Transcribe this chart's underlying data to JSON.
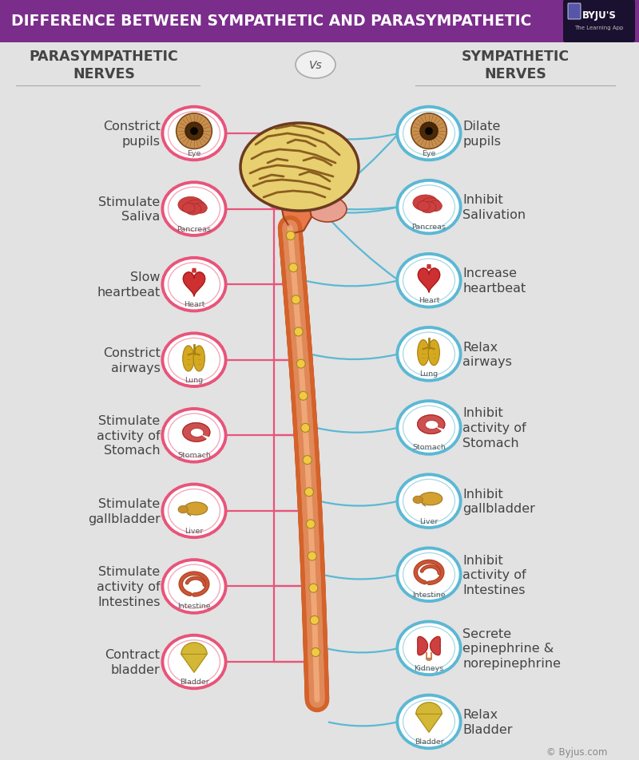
{
  "title": "DIFFERENCE BETWEEN SYMPATHETIC AND PARASYMPATHETIC",
  "title_bg_color": "#7B2D8B",
  "title_text_color": "#FFFFFF",
  "bg_color": "#E2E2E2",
  "left_header": "PARASYMPATHETIC\nNERVES",
  "right_header": "SYMPATHETIC\nNERVES",
  "vs_text": "Vs",
  "header_color": "#444444",
  "left_items": [
    {
      "label": "Constrict\npupils",
      "organ": "Eye",
      "color": "#E8547A"
    },
    {
      "label": "Stimulate\nSaliva",
      "organ": "Pancreas",
      "color": "#E8547A"
    },
    {
      "label": "Slow\nheartbeat",
      "organ": "Heart",
      "color": "#E8547A"
    },
    {
      "label": "Constrict\nairways",
      "organ": "Lung",
      "color": "#E8547A"
    },
    {
      "label": "Stimulate\nactivity of\nStomach",
      "organ": "Stomach",
      "color": "#E8547A"
    },
    {
      "label": "Stimulate\ngallbladder",
      "organ": "Liver",
      "color": "#E8547A"
    },
    {
      "label": "Stimulate\nactivity of\nIntestines",
      "organ": "Intestine",
      "color": "#E8547A"
    },
    {
      "label": "Contract\nbladder",
      "organ": "Bladder",
      "color": "#E8547A"
    }
  ],
  "right_items": [
    {
      "label": "Dilate\npupils",
      "organ": "Eye",
      "color": "#5BB8D4"
    },
    {
      "label": "Inhibit\nSalivation",
      "organ": "Pancreas",
      "color": "#5BB8D4"
    },
    {
      "label": "Increase\nheartbeat",
      "organ": "Heart",
      "color": "#5BB8D4"
    },
    {
      "label": "Relax\nairways",
      "organ": "Lung",
      "color": "#5BB8D4"
    },
    {
      "label": "Inhibit\nactivity of\nStomach",
      "organ": "Stomach",
      "color": "#5BB8D4"
    },
    {
      "label": "Inhibit\ngallbladder",
      "organ": "Liver",
      "color": "#5BB8D4"
    },
    {
      "label": "Inhibit\nactivity of\nIntestines",
      "organ": "Intestine",
      "color": "#5BB8D4"
    },
    {
      "label": "Secrete\nepinephrine &\nnorepinephrine",
      "organ": "Kidneys",
      "color": "#5BB8D4"
    },
    {
      "label": "Relax\nBladder",
      "organ": "Bladder",
      "color": "#5BB8D4"
    }
  ],
  "node_color": "#F5C842",
  "node_edge": "#A08828",
  "line_color_left": "#E8547A",
  "line_color_right": "#5BB8D4",
  "byju_text": "© Byjus.com",
  "brain_fill": "#E8D070",
  "brain_edge": "#6B3A1F",
  "brain_sulci": "#8B5E20",
  "brainstem_fill": "#E87848",
  "brainstem_edge": "#A04020",
  "cerebellum_fill": "#E8A090",
  "spine_outer": "#D4622A",
  "spine_inner": "#E08858",
  "spine_highlight": "#F0A878"
}
